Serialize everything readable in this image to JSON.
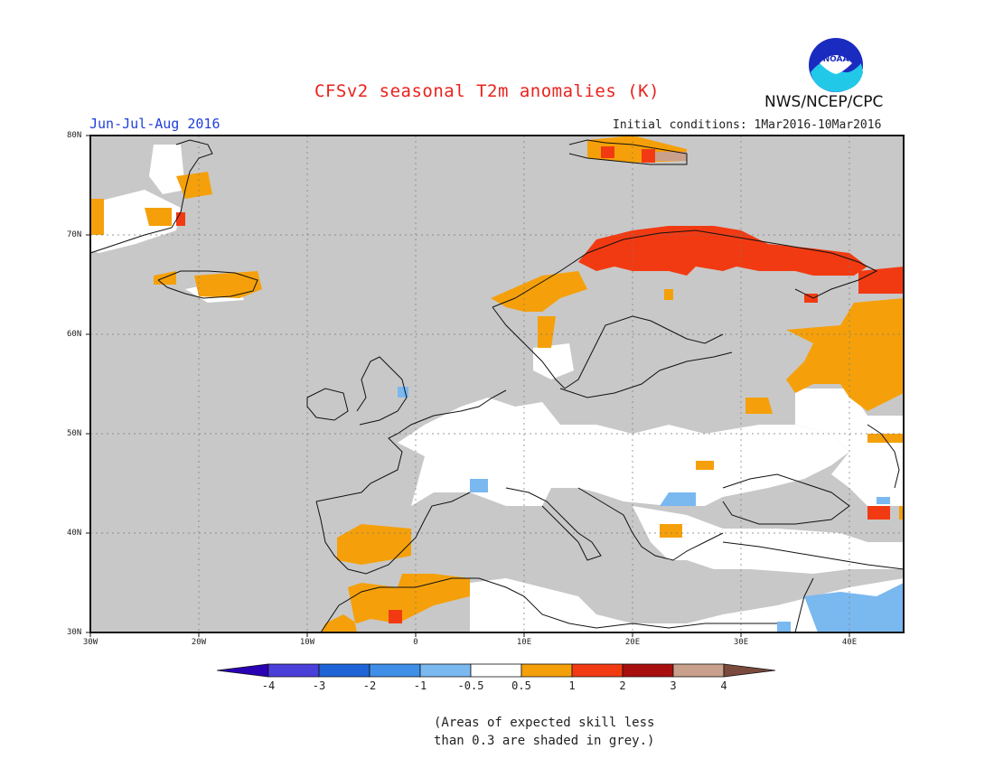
{
  "title": "CFSv2 seasonal T2m anomalies (K)",
  "period": "Jun-Jul-Aug 2016",
  "initial_conditions": "Initial conditions: 1Mar2016-10Mar2016",
  "agency": "NWS/NCEP/CPC",
  "logo_text": "NOAA",
  "latitude_labels": [
    "80N",
    "70N",
    "60N",
    "50N",
    "40N",
    "30N"
  ],
  "longitude_labels": [
    "30W",
    "20W",
    "10W",
    "0",
    "10E",
    "20E",
    "30E",
    "40E"
  ],
  "colorbar": {
    "ticks": [
      "-4",
      "-3",
      "-2",
      "-1",
      "-0.5",
      "0.5",
      "1",
      "2",
      "3",
      "4"
    ],
    "colors": [
      "#2a00b5",
      "#4a3fd9",
      "#1e64d6",
      "#3f8fe8",
      "#7ab8f0",
      "#ffffff",
      "#f5a00a",
      "#f23a12",
      "#a80e0e",
      "#c9a08c",
      "#7a4a3c"
    ]
  },
  "map_colors": {
    "no_skill_grey": "#c8c8c8",
    "land_white": "#ffffff",
    "warm_1": "#f5a00a",
    "warm_2": "#f23a12",
    "cool_1": "#7ab8f0"
  },
  "note_line1": "(Areas of expected skill less",
  "note_line2": "than 0.3 are shaded in grey.)"
}
